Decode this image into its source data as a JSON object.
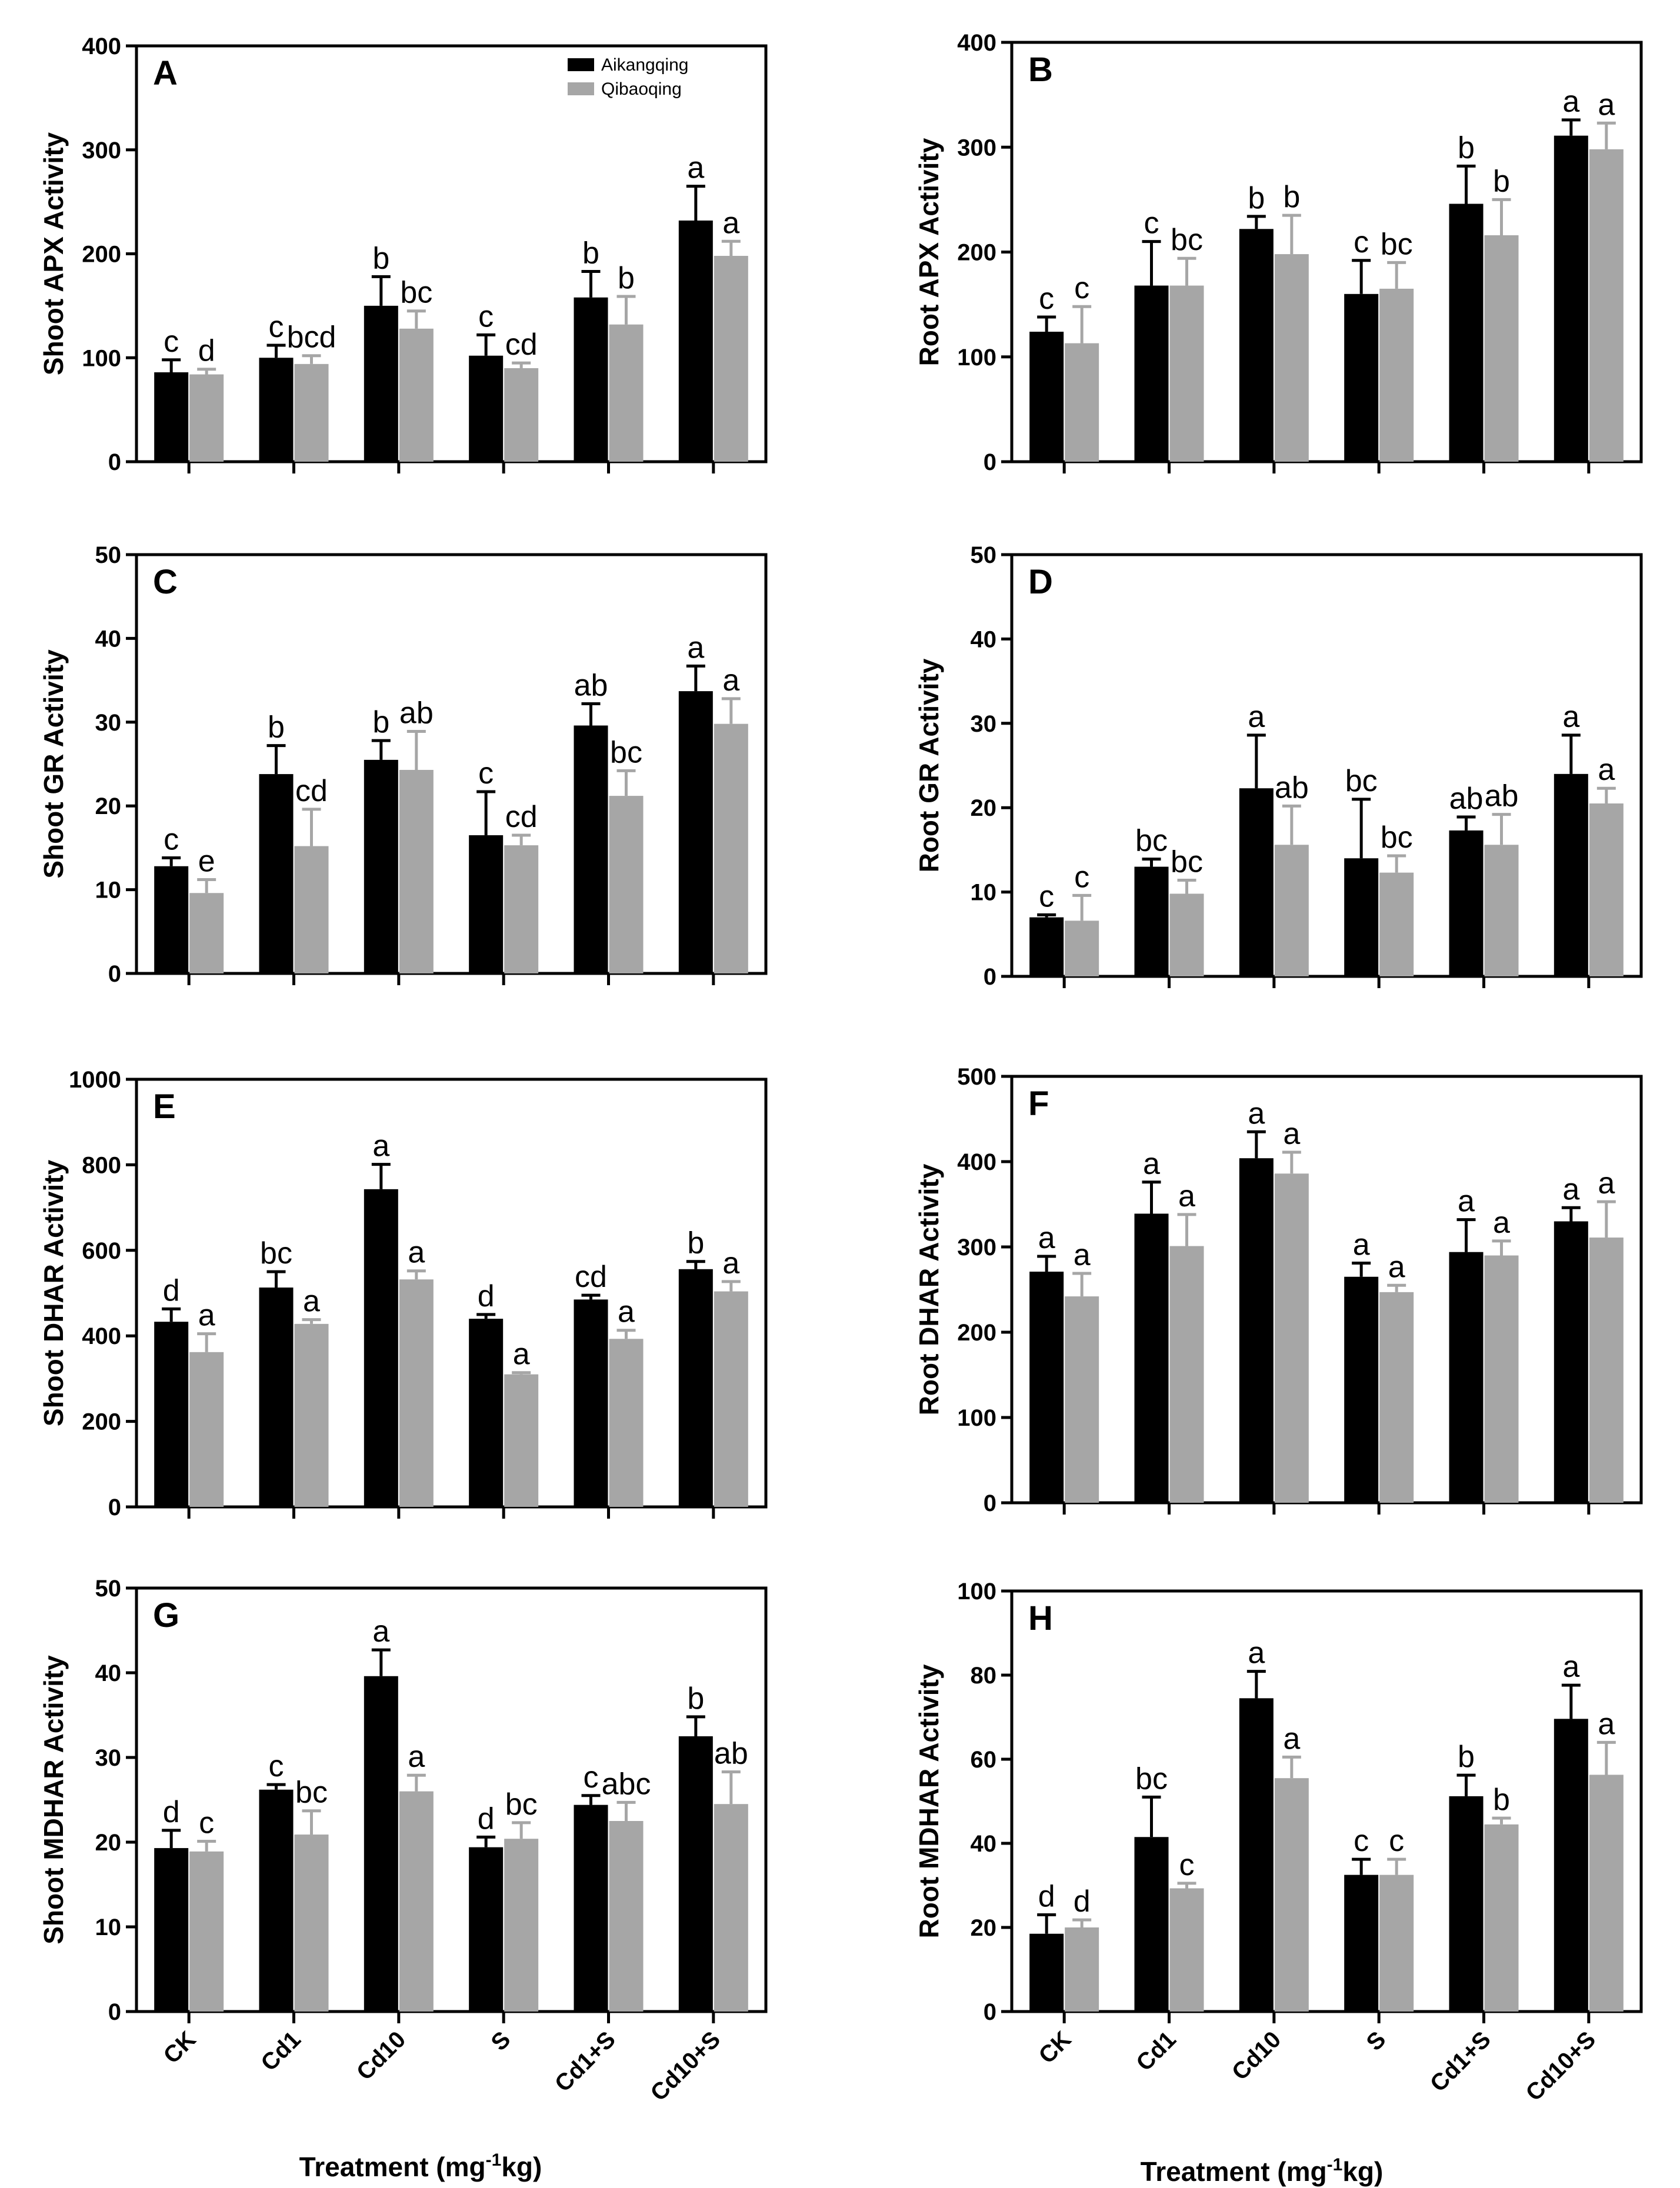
{
  "legend": {
    "series": [
      "Aikangqing",
      "Qibaoqing"
    ],
    "colors": [
      "#000000",
      "#a6a6a6"
    ]
  },
  "xlabel_main": "Treatment (mg",
  "xlabel_sup": "-1",
  "xlabel_tail": "kg)",
  "chart_data": [
    {
      "type": "bar",
      "panel": "A",
      "ylabel": "Shoot APX Activity",
      "ylim": [
        0,
        400
      ],
      "yticks": [
        0,
        100,
        200,
        300,
        400
      ],
      "categories": [
        "CK",
        "Cd1",
        "Cd10",
        "S",
        "Cd1+S",
        "Cd10+S"
      ],
      "show_xticklabels": false,
      "series": [
        {
          "name": "Aikangqing",
          "values": [
            86,
            100,
            150,
            102,
            158,
            232
          ],
          "err": [
            12,
            12,
            28,
            20,
            25,
            33
          ],
          "letters": [
            "c",
            "c",
            "b",
            "c",
            "b",
            "a"
          ]
        },
        {
          "name": "Qibaoqing",
          "values": [
            84,
            94,
            128,
            90,
            132,
            198
          ],
          "err": [
            5,
            8,
            17,
            5,
            27,
            14
          ],
          "letters": [
            "d",
            "bcd",
            "bc",
            "cd",
            "b",
            "a"
          ]
        }
      ]
    },
    {
      "type": "bar",
      "panel": "B",
      "ylabel": "Root APX Activity",
      "ylim": [
        0,
        400
      ],
      "yticks": [
        0,
        100,
        200,
        300,
        400
      ],
      "categories": [
        "CK",
        "Cd1",
        "Cd10",
        "S",
        "Cd1+S",
        "Cd10+S"
      ],
      "show_xticklabels": false,
      "series": [
        {
          "name": "Aikangqing",
          "values": [
            124,
            168,
            222,
            160,
            246,
            311
          ],
          "err": [
            14,
            42,
            12,
            32,
            36,
            15
          ],
          "letters": [
            "c",
            "c",
            "b",
            "c",
            "b",
            "a"
          ]
        },
        {
          "name": "Qibaoqing",
          "values": [
            113,
            168,
            198,
            165,
            216,
            298
          ],
          "err": [
            35,
            26,
            37,
            25,
            34,
            25
          ],
          "letters": [
            "c",
            "bc",
            "b",
            "bc",
            "b",
            "a"
          ]
        }
      ]
    },
    {
      "type": "bar",
      "panel": "C",
      "ylabel": "Shoot GR Activity",
      "ylim": [
        0,
        50
      ],
      "yticks": [
        0,
        10,
        20,
        30,
        40,
        50
      ],
      "categories": [
        "CK",
        "Cd1",
        "Cd10",
        "S",
        "Cd1+S",
        "Cd10+S"
      ],
      "show_xticklabels": false,
      "series": [
        {
          "name": "Aikangqing",
          "values": [
            12.8,
            23.8,
            25.5,
            16.5,
            29.6,
            33.7
          ],
          "err": [
            1.0,
            3.4,
            2.3,
            5.2,
            2.6,
            3.0
          ],
          "letters": [
            "c",
            "b",
            "b",
            "c",
            "ab",
            "a"
          ]
        },
        {
          "name": "Qibaoqing",
          "values": [
            9.6,
            15.2,
            24.3,
            15.3,
            21.2,
            29.8
          ],
          "err": [
            1.6,
            4.4,
            4.6,
            1.2,
            3.0,
            3.0
          ],
          "letters": [
            "e",
            "cd",
            "ab",
            "cd",
            "bc",
            "a"
          ]
        }
      ]
    },
    {
      "type": "bar",
      "panel": "D",
      "ylabel": "Root GR Activity",
      "ylim": [
        0,
        50
      ],
      "yticks": [
        0,
        10,
        20,
        30,
        40,
        50
      ],
      "categories": [
        "CK",
        "Cd1",
        "Cd10",
        "S",
        "Cd1+S",
        "Cd10+S"
      ],
      "show_xticklabels": false,
      "series": [
        {
          "name": "Aikangqing",
          "values": [
            7.0,
            13.0,
            22.3,
            14.0,
            17.3,
            24.0
          ],
          "err": [
            0.3,
            0.9,
            6.3,
            7.0,
            1.6,
            4.6
          ],
          "letters": [
            "c",
            "bc",
            "a",
            "bc",
            "ab",
            "a"
          ]
        },
        {
          "name": "Qibaoqing",
          "values": [
            6.6,
            9.8,
            15.6,
            12.3,
            15.6,
            20.5
          ],
          "err": [
            3.0,
            1.6,
            4.6,
            2.0,
            3.6,
            1.8
          ],
          "letters": [
            "c",
            "bc",
            "ab",
            "bc",
            "ab",
            "a"
          ]
        }
      ]
    },
    {
      "type": "bar",
      "panel": "E",
      "ylabel": "Shoot DHAR Activity",
      "ylim": [
        0,
        1000
      ],
      "yticks": [
        0,
        200,
        400,
        600,
        800,
        1000
      ],
      "categories": [
        "CK",
        "Cd1",
        "Cd10",
        "S",
        "Cd1+S",
        "Cd10+S"
      ],
      "show_xticklabels": false,
      "series": [
        {
          "name": "Aikangqing",
          "values": [
            433,
            513,
            743,
            440,
            485,
            556
          ],
          "err": [
            30,
            37,
            58,
            10,
            10,
            18
          ],
          "letters": [
            "d",
            "bc",
            "a",
            "d",
            "cd",
            "b"
          ]
        },
        {
          "name": "Qibaoqing",
          "values": [
            362,
            428,
            532,
            310,
            393,
            504
          ],
          "err": [
            43,
            10,
            20,
            4,
            20,
            23
          ],
          "letters": [
            "a",
            "a",
            "a",
            "a",
            "a",
            "a"
          ]
        }
      ]
    },
    {
      "type": "bar",
      "panel": "F",
      "ylabel": "Root DHAR Activity",
      "ylim": [
        0,
        500
      ],
      "yticks": [
        0,
        100,
        200,
        300,
        400,
        500
      ],
      "categories": [
        "CK",
        "Cd1",
        "Cd10",
        "S",
        "Cd1+S",
        "Cd10+S"
      ],
      "show_xticklabels": false,
      "series": [
        {
          "name": "Aikangqing",
          "values": [
            271,
            339,
            404,
            265,
            294,
            330
          ],
          "err": [
            18,
            37,
            31,
            16,
            38,
            16
          ],
          "letters": [
            "a",
            "a",
            "a",
            "a",
            "a",
            "a"
          ]
        },
        {
          "name": "Qibaoqing",
          "values": [
            242,
            301,
            386,
            247,
            290,
            311
          ],
          "err": [
            27,
            37,
            25,
            8,
            17,
            42
          ],
          "letters": [
            "a",
            "a",
            "a",
            "a",
            "a",
            "a"
          ]
        }
      ]
    },
    {
      "type": "bar",
      "panel": "G",
      "ylabel": "Shoot MDHAR Activity",
      "ylim": [
        0,
        50
      ],
      "yticks": [
        0,
        10,
        20,
        30,
        40,
        50
      ],
      "categories": [
        "CK",
        "Cd1",
        "Cd10",
        "S",
        "Cd1+S",
        "Cd10+S"
      ],
      "show_xticklabels": true,
      "series": [
        {
          "name": "Aikangqing",
          "values": [
            19.3,
            26.2,
            39.6,
            19.4,
            24.4,
            32.5
          ],
          "err": [
            2.1,
            0.6,
            3.1,
            1.2,
            1.1,
            2.3
          ],
          "letters": [
            "d",
            "c",
            "a",
            "d",
            "c",
            "b"
          ]
        },
        {
          "name": "Qibaoqing",
          "values": [
            18.9,
            20.9,
            26.0,
            20.4,
            22.5,
            24.5
          ],
          "err": [
            1.2,
            2.8,
            1.9,
            1.9,
            2.2,
            3.8
          ],
          "letters": [
            "c",
            "bc",
            "a",
            "bc",
            "abc",
            "ab"
          ]
        }
      ]
    },
    {
      "type": "bar",
      "panel": "H",
      "ylabel": "Root MDHAR Activity",
      "ylim": [
        0,
        100
      ],
      "yticks": [
        0,
        20,
        40,
        60,
        80,
        100
      ],
      "categories": [
        "CK",
        "Cd1",
        "Cd10",
        "S",
        "Cd1+S",
        "Cd10+S"
      ],
      "show_xticklabels": true,
      "series": [
        {
          "name": "Aikangqing",
          "values": [
            18.5,
            41.5,
            74.5,
            32.5,
            51.2,
            69.6
          ],
          "err": [
            4.5,
            9.5,
            6.4,
            3.7,
            5.0,
            8.0
          ],
          "letters": [
            "d",
            "bc",
            "a",
            "c",
            "b",
            "a"
          ]
        },
        {
          "name": "Qibaoqing",
          "values": [
            20.0,
            29.3,
            55.5,
            32.5,
            44.5,
            56.3
          ],
          "err": [
            1.8,
            1.2,
            5.0,
            3.7,
            1.5,
            7.7
          ],
          "letters": [
            "d",
            "c",
            "a",
            "c",
            "b",
            "a"
          ]
        }
      ]
    }
  ]
}
